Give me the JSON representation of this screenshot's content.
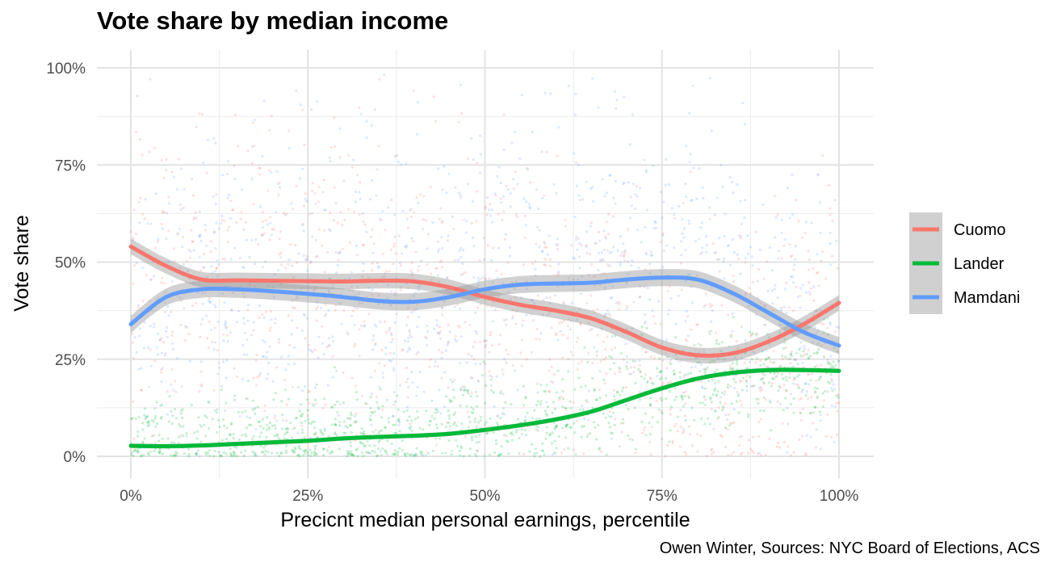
{
  "chart_data": {
    "type": "scatter",
    "title": "Vote share by median income",
    "xlabel": "Precicnt median personal earnings, percentile",
    "ylabel": "Vote share",
    "caption": "Owen Winter, Sources: NYC Board of Elections, ACS",
    "xlim": [
      0,
      1
    ],
    "ylim": [
      0,
      1
    ],
    "x_ticks": [
      {
        "value": 0,
        "label": "0%"
      },
      {
        "value": 0.25,
        "label": "25%"
      },
      {
        "value": 0.5,
        "label": "50%"
      },
      {
        "value": 0.75,
        "label": "75%"
      },
      {
        "value": 1,
        "label": "100%"
      }
    ],
    "y_ticks": [
      {
        "value": 0,
        "label": "0%"
      },
      {
        "value": 0.25,
        "label": "25%"
      },
      {
        "value": 0.5,
        "label": "50%"
      },
      {
        "value": 0.75,
        "label": "75%"
      },
      {
        "value": 1,
        "label": "100%"
      }
    ],
    "grid": true,
    "legend_position": "right",
    "series": [
      {
        "name": "Cuomo",
        "color": "#F8766D",
        "trend_x": [
          0,
          0.05,
          0.1,
          0.15,
          0.2,
          0.25,
          0.3,
          0.35,
          0.4,
          0.45,
          0.5,
          0.55,
          0.6,
          0.65,
          0.7,
          0.75,
          0.8,
          0.85,
          0.9,
          0.95,
          1.0
        ],
        "trend_y": [
          0.54,
          0.49,
          0.455,
          0.453,
          0.452,
          0.451,
          0.45,
          0.452,
          0.45,
          0.435,
          0.41,
          0.39,
          0.375,
          0.355,
          0.32,
          0.28,
          0.26,
          0.265,
          0.295,
          0.34,
          0.395
        ],
        "band": 0.02,
        "cloud_center": [
          0.47,
          0.48,
          0.46,
          0.46,
          0.45,
          0.45,
          0.44,
          0.44,
          0.44,
          0.42,
          0.4,
          0.38,
          0.36,
          0.34,
          0.31,
          0.28,
          0.26,
          0.26,
          0.28,
          0.3,
          0.33
        ],
        "cloud_spread": 0.2
      },
      {
        "name": "Lander",
        "color": "#00BA38",
        "trend_x": [
          0,
          0.05,
          0.1,
          0.15,
          0.2,
          0.25,
          0.3,
          0.35,
          0.4,
          0.45,
          0.5,
          0.55,
          0.6,
          0.65,
          0.7,
          0.75,
          0.8,
          0.85,
          0.9,
          0.95,
          1.0
        ],
        "trend_y": [
          0.027,
          0.026,
          0.028,
          0.032,
          0.036,
          0.04,
          0.046,
          0.05,
          0.053,
          0.058,
          0.068,
          0.08,
          0.095,
          0.115,
          0.145,
          0.175,
          0.2,
          0.215,
          0.222,
          0.222,
          0.22
        ],
        "band": 0.006,
        "cloud_center": [
          0.04,
          0.04,
          0.04,
          0.04,
          0.045,
          0.05,
          0.055,
          0.06,
          0.06,
          0.065,
          0.075,
          0.085,
          0.1,
          0.12,
          0.15,
          0.175,
          0.195,
          0.21,
          0.215,
          0.215,
          0.215
        ],
        "cloud_spread": 0.06
      },
      {
        "name": "Mamdani",
        "color": "#619CFF",
        "trend_x": [
          0,
          0.05,
          0.1,
          0.15,
          0.2,
          0.25,
          0.3,
          0.35,
          0.4,
          0.45,
          0.5,
          0.55,
          0.6,
          0.65,
          0.7,
          0.75,
          0.8,
          0.85,
          0.9,
          0.95,
          1.0
        ],
        "trend_y": [
          0.34,
          0.41,
          0.43,
          0.43,
          0.425,
          0.418,
          0.41,
          0.4,
          0.398,
          0.41,
          0.43,
          0.442,
          0.445,
          0.447,
          0.455,
          0.46,
          0.455,
          0.42,
          0.37,
          0.32,
          0.285
        ],
        "band": 0.022,
        "cloud_center": [
          0.36,
          0.4,
          0.42,
          0.42,
          0.42,
          0.42,
          0.42,
          0.42,
          0.43,
          0.45,
          0.48,
          0.5,
          0.51,
          0.52,
          0.52,
          0.52,
          0.5,
          0.46,
          0.41,
          0.36,
          0.32
        ],
        "cloud_spread": 0.2
      }
    ]
  },
  "legend": {
    "key_background": "#d0d0d0"
  }
}
